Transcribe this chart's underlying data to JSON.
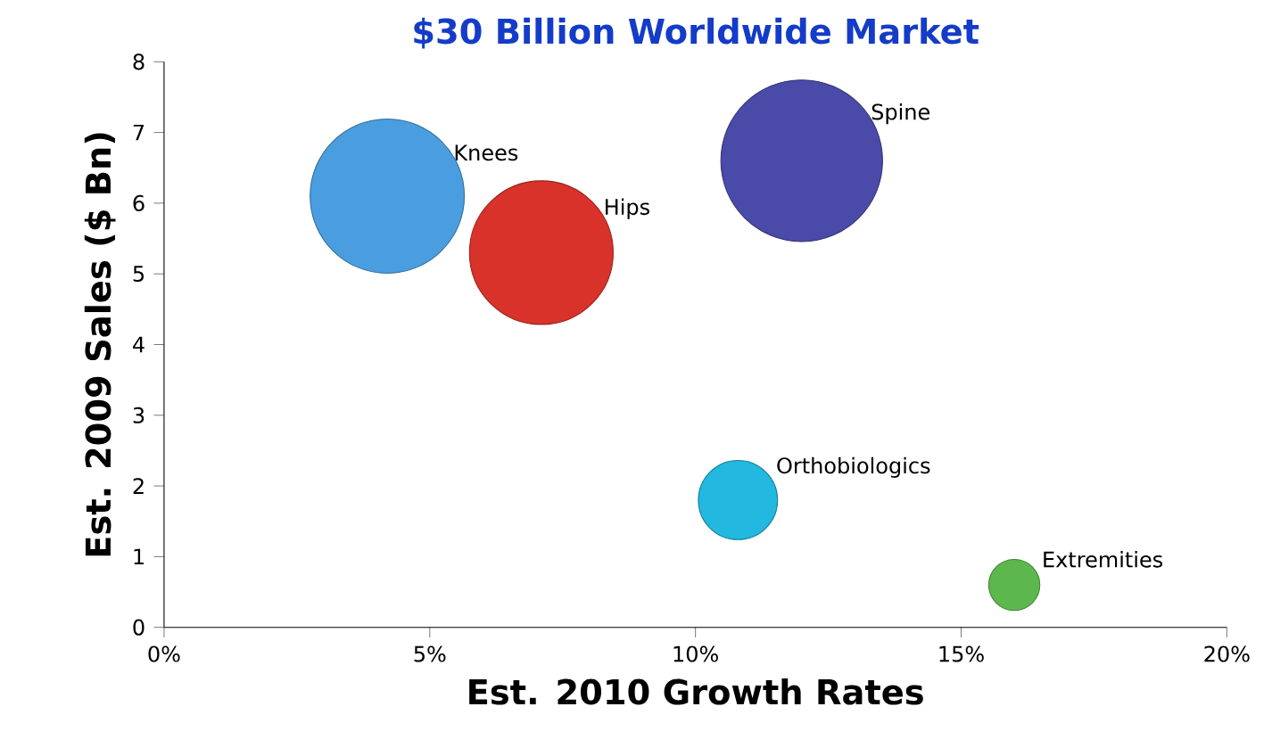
{
  "chart_data": {
    "type": "bubble",
    "title": "$30 Billion Worldwide Market",
    "xlabel": "Est. 2010 Growth Rates",
    "ylabel": "Est. 2009 Sales ($ Bn)",
    "xlim": [
      0,
      20
    ],
    "ylim": [
      0,
      8
    ],
    "xticks": [
      {
        "value": 0,
        "label": "0%"
      },
      {
        "value": 5,
        "label": "5%"
      },
      {
        "value": 10,
        "label": "10%"
      },
      {
        "value": 15,
        "label": "15%"
      },
      {
        "value": 20,
        "label": "20%"
      }
    ],
    "yticks": [
      0,
      1,
      2,
      3,
      4,
      5,
      6,
      7,
      8
    ],
    "series": [
      {
        "name": "Knees",
        "color": "#4a9ee0",
        "x": [
          4.2
        ],
        "values": [
          6.1
        ],
        "sizes": [
          0.91
        ]
      },
      {
        "name": "Hips",
        "color": "#d8322a",
        "x": [
          7.1
        ],
        "values": [
          5.3
        ],
        "sizes": [
          0.79
        ]
      },
      {
        "name": "Spine",
        "color": "#4a4aa8",
        "x": [
          12.0
        ],
        "values": [
          6.6
        ],
        "sizes": [
          1
        ]
      },
      {
        "name": "Orthobiologics",
        "color": "#22b8e0",
        "x": [
          10.8
        ],
        "values": [
          1.8
        ],
        "sizes": [
          0.24
        ]
      },
      {
        "name": "Extremities",
        "color": "#5cb84c",
        "x": [
          16.0
        ],
        "values": [
          0.6
        ],
        "sizes": [
          0.1
        ]
      }
    ]
  }
}
